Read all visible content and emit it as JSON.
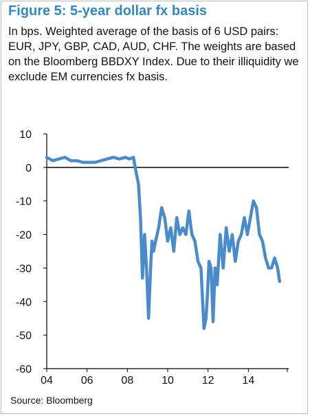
{
  "title": "Figure 5: 5-year dollar fx basis",
  "subtitle": "In bps. Weighted average of the basis of 6 USD pairs: EUR, JPY, GBP, CAD, AUD, CHF. The weights are based on the Bloomberg BBDXY Index. Due to their illiquidity we exclude EM currencies fx basis.",
  "source": "Source: Bloomberg",
  "colors": {
    "line": "#4a8ccb",
    "title": "#2f87c5",
    "axis": "#000000"
  },
  "chart_data": {
    "type": "line",
    "ylim": [
      -60,
      10
    ],
    "yticks": [
      10,
      0,
      -10,
      -20,
      -30,
      -40,
      -50,
      -60
    ],
    "xlim": [
      2004,
      2016
    ],
    "xticks": [
      2004,
      2006,
      2008,
      2010,
      2012,
      2014
    ],
    "xtick_labels": [
      "04",
      "06",
      "08",
      "10",
      "12",
      "14"
    ],
    "grid": false,
    "series": [
      {
        "x": [
          2004.0,
          2004.3,
          2004.6,
          2004.9,
          2005.2,
          2005.5,
          2005.8,
          2006.1,
          2006.4,
          2006.7,
          2007.0,
          2007.3,
          2007.6,
          2007.9,
          2008.1,
          2008.3,
          2008.45,
          2008.55,
          2008.65,
          2008.75,
          2008.85,
          2008.95,
          2009.05,
          2009.15,
          2009.22,
          2009.3,
          2009.4,
          2009.55,
          2009.7,
          2009.85,
          2010.0,
          2010.15,
          2010.3,
          2010.45,
          2010.6,
          2010.75,
          2010.9,
          2011.05,
          2011.2,
          2011.35,
          2011.5,
          2011.65,
          2011.8,
          2011.9,
          2011.97,
          2012.05,
          2012.15,
          2012.25,
          2012.35,
          2012.45,
          2012.6,
          2012.75,
          2012.9,
          2013.05,
          2013.2,
          2013.35,
          2013.5,
          2013.65,
          2013.8,
          2013.95,
          2014.1,
          2014.25,
          2014.4,
          2014.55,
          2014.7,
          2014.85,
          2015.0,
          2015.15,
          2015.3,
          2015.45,
          2015.55
        ],
        "values": [
          3,
          2,
          2.5,
          3,
          2,
          2,
          1.5,
          1.5,
          1.5,
          2,
          2.5,
          3,
          2.5,
          3,
          2.5,
          3,
          -2,
          -5,
          -15,
          -33,
          -20,
          -30,
          -45,
          -30,
          -22,
          -25,
          -22,
          -18,
          -12,
          -15,
          -22,
          -18,
          -25,
          -15,
          -20,
          -18,
          -20,
          -13,
          -20,
          -22,
          -28,
          -30,
          -48,
          -45,
          -38,
          -28,
          -30,
          -46,
          -30,
          -35,
          -20,
          -30,
          -18,
          -25,
          -20,
          -28,
          -22,
          -20,
          -15,
          -20,
          -15,
          -10,
          -12,
          -20,
          -22,
          -27,
          -30,
          -30,
          -27,
          -30,
          -34
        ]
      }
    ]
  }
}
